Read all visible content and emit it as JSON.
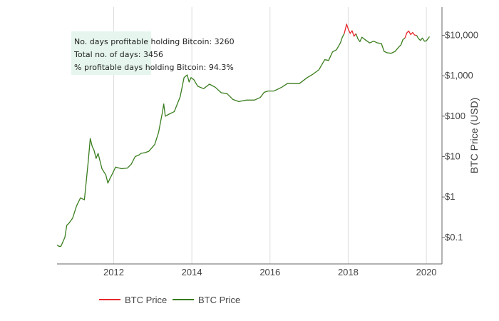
{
  "stats": {
    "days_profitable": "No. days profitable holding Bitcoin: 3260",
    "total_days": "Total no. of days: 3456",
    "pct_profitable": "% profitable days holding Bitcoin: 94.3%"
  },
  "legend": [
    {
      "label": "BTC Price",
      "color": "#e8282c"
    },
    {
      "label": "BTC Price",
      "color": "#3a7d1e"
    }
  ],
  "chart_data": {
    "type": "line",
    "title": "",
    "xlabel": "",
    "ylabel": "BTC Price (USD)",
    "y_scale": "log",
    "xlim": [
      2010.55,
      2020.4
    ],
    "ylim": [
      0.022,
      50000
    ],
    "x_ticks": [
      2012,
      2014,
      2016,
      2018,
      2020
    ],
    "x_tick_labels": [
      "2012",
      "2014",
      "2016",
      "2018",
      "2020"
    ],
    "y_ticks": [
      0.1,
      1,
      10,
      100,
      1000,
      10000
    ],
    "y_tick_labels": [
      "$0.1",
      "$1",
      "$10",
      "$100",
      "$1,000",
      "$10,000"
    ],
    "grid": {
      "x": true,
      "y": false
    },
    "legend_position": "bottom",
    "colors": {
      "profitable": "#3a7d1e",
      "unprofitable": "#e8282c",
      "grid": "#dddddd",
      "axis": "#666666",
      "stats_box": "#e6f6ee"
    },
    "series": [
      {
        "name": "BTC Price",
        "color": "#3a7d1e",
        "x": [
          2010.55,
          2010.6,
          2010.65,
          2010.75,
          2010.8,
          2010.85,
          2010.95,
          2011.05,
          2011.15,
          2011.25,
          2011.35,
          2011.4,
          2011.45,
          2011.5,
          2011.55,
          2011.6,
          2011.7,
          2011.8,
          2011.85,
          2011.9,
          2011.95,
          2012.05,
          2012.2,
          2012.35,
          2012.45,
          2012.55,
          2012.65,
          2012.7,
          2012.8,
          2012.9,
          2013.05,
          2013.15,
          2013.25,
          2013.28,
          2013.32,
          2013.4,
          2013.55,
          2013.7,
          2013.8,
          2013.88,
          2013.93,
          2013.98,
          2014.05,
          2014.15,
          2014.3,
          2014.45,
          2014.6,
          2014.75,
          2014.9,
          2015.05,
          2015.2,
          2015.4,
          2015.6,
          2015.75,
          2015.85,
          2015.95,
          2016.1,
          2016.3,
          2016.45,
          2016.6,
          2016.75,
          2016.95,
          2017.1,
          2017.25,
          2017.4,
          2017.5,
          2017.6,
          2017.7,
          2017.8,
          2017.85,
          2017.9
        ],
        "y": [
          0.065,
          0.06,
          0.06,
          0.1,
          0.2,
          0.22,
          0.3,
          0.6,
          0.95,
          0.85,
          8,
          28,
          18,
          14,
          9,
          12,
          5,
          3.5,
          2.2,
          2.8,
          3.5,
          5.5,
          5,
          5.2,
          6.5,
          10,
          11,
          12,
          12.5,
          13.5,
          20,
          40,
          130,
          200,
          100,
          110,
          130,
          300,
          900,
          1050,
          700,
          900,
          800,
          550,
          480,
          620,
          520,
          380,
          360,
          260,
          230,
          250,
          250,
          290,
          390,
          420,
          420,
          520,
          650,
          640,
          640,
          900,
          1100,
          1400,
          2500,
          2400,
          3900,
          4400,
          6500,
          9000,
          11000
        ]
      },
      {
        "name": "BTC Price",
        "color": "#e8282c",
        "x": [
          2017.9,
          2017.93,
          2017.96,
          2018.0,
          2018.05,
          2018.1,
          2018.15,
          2018.2
        ],
        "y": [
          11000,
          14500,
          19000,
          14500,
          11200,
          13000,
          9500,
          11000
        ]
      },
      {
        "name": "BTC Price",
        "color": "#3a7d1e",
        "x": [
          2018.2,
          2018.25,
          2018.3,
          2018.35,
          2018.45,
          2018.55,
          2018.65,
          2018.75,
          2018.85,
          2018.92,
          2019.0,
          2019.1,
          2019.2,
          2019.3,
          2019.35,
          2019.4,
          2019.45
        ],
        "y": [
          11000,
          8200,
          7000,
          9000,
          7600,
          6500,
          7200,
          6500,
          6300,
          4000,
          3700,
          3600,
          4000,
          5200,
          5800,
          7900,
          8500
        ]
      },
      {
        "name": "BTC Price",
        "color": "#e8282c",
        "x": [
          2019.45,
          2019.5,
          2019.55,
          2019.6,
          2019.65,
          2019.7,
          2019.75
        ],
        "y": [
          8500,
          11500,
          12800,
          10500,
          11800,
          10200,
          10000
        ]
      },
      {
        "name": "BTC Price",
        "color": "#3a7d1e",
        "x": [
          2019.75,
          2019.8,
          2019.85,
          2019.9,
          2019.95,
          2020.0,
          2020.05,
          2020.08
        ],
        "y": [
          10000,
          8300,
          7500,
          8600,
          7200,
          7300,
          8500,
          9300
        ]
      }
    ]
  }
}
